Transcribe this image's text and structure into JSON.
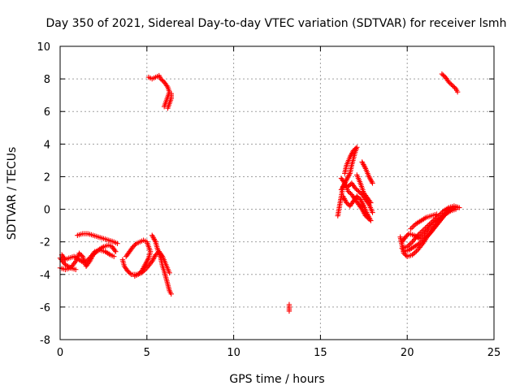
{
  "chart_data": {
    "type": "scatter",
    "title": "Day 350 of 2021, Sidereal Day-to-day VTEC variation (SDTVAR) for receiver lsmh",
    "xlabel": "GPS time / hours",
    "ylabel": "SDTVAR / TECUs",
    "xlim": [
      0,
      25
    ],
    "ylim": [
      -8,
      10
    ],
    "xticks": [
      0,
      5,
      10,
      15,
      20,
      25
    ],
    "yticks": [
      -8,
      -6,
      -4,
      -2,
      0,
      2,
      4,
      6,
      8,
      10
    ],
    "grid": true,
    "marker": "+",
    "color": "#ff0000",
    "segments": [
      [
        [
          0.0,
          -3.0
        ],
        [
          0.3,
          -3.4
        ],
        [
          0.6,
          -3.6
        ],
        [
          0.9,
          -3.2
        ],
        [
          1.1,
          -2.7
        ],
        [
          1.3,
          -2.9
        ],
        [
          1.5,
          -3.5
        ],
        [
          1.7,
          -3.2
        ],
        [
          1.9,
          -2.8
        ],
        [
          2.2,
          -2.5
        ],
        [
          2.5,
          -2.3
        ],
        [
          2.8,
          -2.2
        ],
        [
          3.0,
          -2.3
        ],
        [
          3.2,
          -2.6
        ]
      ],
      [
        [
          0.1,
          -2.8
        ],
        [
          0.3,
          -3.1
        ],
        [
          0.5,
          -3.0
        ],
        [
          0.8,
          -2.9
        ],
        [
          1.1,
          -3.1
        ],
        [
          1.4,
          -3.3
        ],
        [
          1.7,
          -3.0
        ],
        [
          2.0,
          -2.6
        ],
        [
          2.3,
          -2.5
        ],
        [
          2.6,
          -2.6
        ],
        [
          2.9,
          -2.8
        ],
        [
          3.1,
          -2.9
        ]
      ],
      [
        [
          0.0,
          -3.6
        ],
        [
          0.3,
          -3.7
        ],
        [
          0.6,
          -3.6
        ],
        [
          0.9,
          -3.7
        ]
      ],
      [
        [
          1.0,
          -1.6
        ],
        [
          1.3,
          -1.5
        ],
        [
          1.6,
          -1.5
        ],
        [
          1.9,
          -1.6
        ],
        [
          2.2,
          -1.7
        ],
        [
          2.5,
          -1.8
        ],
        [
          2.8,
          -1.9
        ],
        [
          3.1,
          -2.0
        ],
        [
          3.3,
          -2.1
        ]
      ],
      [
        [
          3.6,
          -3.1
        ],
        [
          3.7,
          -3.5
        ],
        [
          3.9,
          -3.8
        ],
        [
          4.1,
          -4.0
        ],
        [
          4.4,
          -4.0
        ],
        [
          4.7,
          -3.9
        ],
        [
          5.0,
          -3.6
        ],
        [
          5.3,
          -3.2
        ],
        [
          5.5,
          -2.8
        ],
        [
          5.7,
          -2.6
        ],
        [
          5.9,
          -2.9
        ],
        [
          6.1,
          -3.4
        ],
        [
          6.3,
          -3.9
        ]
      ],
      [
        [
          3.8,
          -2.9
        ],
        [
          4.0,
          -2.6
        ],
        [
          4.2,
          -2.3
        ],
        [
          4.4,
          -2.1
        ],
        [
          4.6,
          -2.0
        ],
        [
          4.8,
          -1.9
        ],
        [
          5.0,
          -2.0
        ],
        [
          5.1,
          -2.3
        ],
        [
          5.2,
          -2.6
        ],
        [
          5.1,
          -3.0
        ],
        [
          4.9,
          -3.4
        ],
        [
          4.7,
          -3.8
        ],
        [
          4.5,
          -4.0
        ],
        [
          4.3,
          -4.1
        ]
      ],
      [
        [
          5.3,
          -1.6
        ],
        [
          5.5,
          -2.0
        ],
        [
          5.6,
          -2.4
        ],
        [
          5.8,
          -3.0
        ],
        [
          5.9,
          -3.5
        ],
        [
          6.0,
          -3.8
        ],
        [
          6.1,
          -4.2
        ],
        [
          6.2,
          -4.6
        ],
        [
          6.3,
          -5.0
        ],
        [
          6.4,
          -5.2
        ]
      ],
      [
        [
          5.1,
          8.1
        ],
        [
          5.3,
          8.0
        ],
        [
          5.5,
          8.1
        ],
        [
          5.7,
          8.2
        ],
        [
          5.8,
          8.0
        ],
        [
          6.0,
          7.8
        ],
        [
          6.2,
          7.5
        ],
        [
          6.3,
          7.2
        ],
        [
          6.2,
          6.9
        ],
        [
          6.1,
          6.6
        ],
        [
          6.0,
          6.3
        ]
      ],
      [
        [
          6.2,
          6.2
        ],
        [
          6.3,
          6.5
        ],
        [
          6.4,
          6.8
        ],
        [
          6.4,
          7.1
        ]
      ],
      [
        [
          13.2,
          -5.85
        ],
        [
          13.2,
          -6.25
        ]
      ],
      [
        [
          16.0,
          -0.4
        ],
        [
          16.1,
          0.2
        ],
        [
          16.2,
          0.8
        ],
        [
          16.3,
          1.4
        ],
        [
          16.5,
          1.8
        ],
        [
          16.7,
          2.2
        ],
        [
          16.8,
          2.7
        ],
        [
          16.9,
          3.1
        ],
        [
          17.0,
          3.5
        ],
        [
          17.1,
          3.8
        ],
        [
          16.9,
          3.6
        ],
        [
          16.7,
          3.2
        ],
        [
          16.5,
          2.7
        ],
        [
          16.4,
          2.2
        ]
      ],
      [
        [
          16.2,
          1.2
        ],
        [
          16.4,
          1.5
        ],
        [
          16.6,
          1.4
        ],
        [
          16.8,
          1.6
        ],
        [
          17.0,
          1.3
        ],
        [
          17.2,
          1.1
        ],
        [
          17.4,
          0.9
        ],
        [
          17.6,
          0.6
        ],
        [
          17.8,
          0.3
        ],
        [
          18.0,
          -0.2
        ]
      ],
      [
        [
          16.3,
          0.8
        ],
        [
          16.5,
          0.4
        ],
        [
          16.7,
          0.2
        ],
        [
          16.9,
          0.5
        ],
        [
          17.1,
          0.8
        ],
        [
          17.3,
          0.6
        ],
        [
          17.5,
          0.2
        ],
        [
          17.7,
          -0.3
        ],
        [
          17.9,
          -0.7
        ]
      ],
      [
        [
          16.2,
          1.9
        ],
        [
          16.4,
          1.6
        ],
        [
          16.6,
          1.1
        ],
        [
          16.8,
          0.9
        ],
        [
          17.0,
          0.6
        ],
        [
          17.2,
          0.3
        ],
        [
          17.4,
          0.0
        ],
        [
          17.6,
          -0.4
        ],
        [
          17.8,
          -0.6
        ]
      ],
      [
        [
          17.4,
          2.9
        ],
        [
          17.6,
          2.5
        ],
        [
          17.8,
          2.0
        ],
        [
          18.0,
          1.6
        ]
      ],
      [
        [
          17.1,
          2.1
        ],
        [
          17.3,
          1.6
        ],
        [
          17.5,
          1.0
        ],
        [
          17.7,
          0.7
        ],
        [
          17.9,
          0.4
        ]
      ],
      [
        [
          19.6,
          -1.7
        ],
        [
          19.7,
          -2.2
        ],
        [
          19.8,
          -2.7
        ],
        [
          20.0,
          -2.9
        ],
        [
          20.3,
          -2.8
        ],
        [
          20.6,
          -2.5
        ],
        [
          20.9,
          -2.1
        ],
        [
          21.2,
          -1.6
        ],
        [
          21.5,
          -1.2
        ],
        [
          21.8,
          -0.8
        ],
        [
          22.1,
          -0.4
        ],
        [
          22.4,
          -0.1
        ],
        [
          22.7,
          0.1
        ],
        [
          22.9,
          0.1
        ]
      ],
      [
        [
          19.7,
          -2.4
        ],
        [
          20.0,
          -2.3
        ],
        [
          20.3,
          -2.0
        ],
        [
          20.6,
          -1.6
        ],
        [
          20.9,
          -1.3
        ],
        [
          21.2,
          -1.0
        ],
        [
          21.5,
          -0.7
        ],
        [
          21.8,
          -0.4
        ],
        [
          22.1,
          -0.1
        ],
        [
          22.4,
          0.1
        ],
        [
          22.7,
          0.2
        ],
        [
          23.0,
          0.1
        ]
      ],
      [
        [
          19.7,
          -2.0
        ],
        [
          19.9,
          -1.7
        ],
        [
          20.1,
          -1.5
        ],
        [
          20.4,
          -1.6
        ],
        [
          20.7,
          -1.8
        ],
        [
          21.0,
          -1.5
        ],
        [
          21.3,
          -1.1
        ],
        [
          21.6,
          -0.8
        ],
        [
          21.9,
          -0.6
        ],
        [
          22.2,
          -0.3
        ],
        [
          22.5,
          0.0
        ]
      ],
      [
        [
          19.8,
          -2.6
        ],
        [
          20.1,
          -2.5
        ],
        [
          20.4,
          -2.3
        ],
        [
          20.7,
          -2.1
        ],
        [
          21.0,
          -1.8
        ],
        [
          21.3,
          -1.5
        ],
        [
          21.6,
          -1.1
        ],
        [
          21.9,
          -0.7
        ],
        [
          22.2,
          -0.3
        ],
        [
          22.5,
          -0.1
        ],
        [
          22.8,
          0.0
        ]
      ],
      [
        [
          20.2,
          -1.2
        ],
        [
          20.5,
          -0.9
        ],
        [
          20.8,
          -0.7
        ],
        [
          21.1,
          -0.5
        ],
        [
          21.4,
          -0.4
        ],
        [
          21.7,
          -0.3
        ]
      ],
      [
        [
          22.0,
          8.3
        ],
        [
          22.2,
          8.1
        ],
        [
          22.4,
          7.8
        ],
        [
          22.6,
          7.6
        ],
        [
          22.8,
          7.4
        ],
        [
          22.9,
          7.2
        ]
      ]
    ]
  }
}
